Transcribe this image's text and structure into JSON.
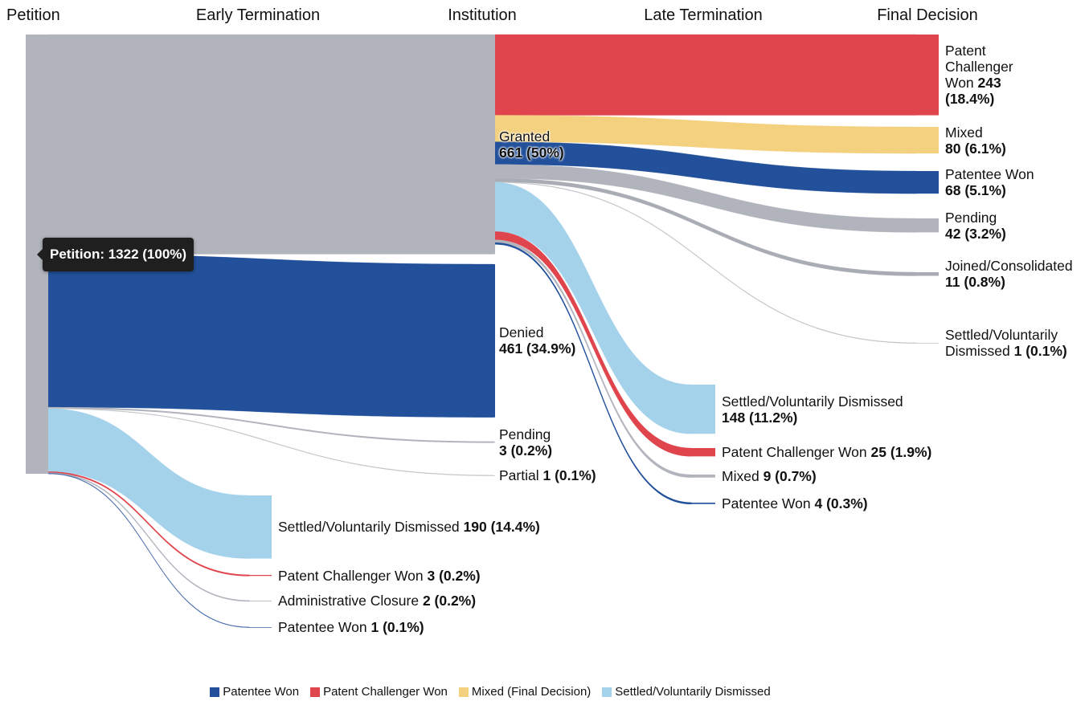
{
  "chart_data": {
    "type": "sankey",
    "columns": [
      "Petition",
      "Early Termination",
      "Institution",
      "Late Termination",
      "Final Decision"
    ],
    "tooltip": "Petition: 1322 (100%)",
    "nodes": [
      {
        "column": 0,
        "value": 1322,
        "color": "#b1b4bc"
      },
      {
        "name": "Granted",
        "column": 2,
        "value": 661,
        "value_label": "661 (50%)",
        "color": "#b1b4bc"
      },
      {
        "name": "Denied",
        "column": 2,
        "value": 461,
        "value_label": "461 (34.9%)",
        "color": "#22509b"
      },
      {
        "name": "Pending",
        "column": 2,
        "value": 3,
        "value_label": "3 (0.2%)",
        "color": "#b1b4bc"
      },
      {
        "name": "Partial",
        "column": 2,
        "value": 1,
        "value_label": "1 (0.1%)",
        "color": "#c4c6cc"
      },
      {
        "name": "Settled/Voluntarily Dismissed",
        "column": 1,
        "value": 190,
        "value_label": "190 (14.4%)",
        "color": "#a5d2eb"
      },
      {
        "name": "Patent Challenger Won",
        "column": 1,
        "value": 3,
        "value_label": "3 (0.2%)",
        "color": "#e0444c"
      },
      {
        "name": "Administrative Closure",
        "column": 1,
        "value": 2,
        "value_label": "2 (0.2%)",
        "color": "#b1b4bc"
      },
      {
        "name": "Patentee Won",
        "column": 1,
        "value": 1,
        "value_label": "1 (0.1%)",
        "color": "#4a6fae"
      },
      {
        "name": "Settled/Voluntarily Dismissed",
        "column": 3,
        "value": 148,
        "value_label": "148 (11.2%)",
        "color": "#a5d2eb"
      },
      {
        "name": "Patent Challenger Won",
        "column": 3,
        "value": 25,
        "value_label": "25 (1.9%)",
        "color": "#e0444c"
      },
      {
        "name": "Mixed",
        "column": 3,
        "value": 9,
        "value_label": "9 (0.7%)",
        "color": "#b1b4bc"
      },
      {
        "name": "Patentee Won",
        "column": 3,
        "value": 4,
        "value_label": "4 (0.3%)",
        "color": "#22509b"
      },
      {
        "name": "Patent Challenger Won",
        "column": 4,
        "value": 243,
        "value_label": "243 (18.4%)",
        "color": "#e0444c"
      },
      {
        "name": "Mixed",
        "column": 4,
        "value": 80,
        "value_label": "80 (6.1%)",
        "color": "#f4d17f"
      },
      {
        "name": "Patentee Won",
        "column": 4,
        "value": 68,
        "value_label": "68 (5.1%)",
        "color": "#22509b"
      },
      {
        "name": "Pending",
        "column": 4,
        "value": 42,
        "value_label": "42 (3.2%)",
        "color": "#b1b4bc"
      },
      {
        "name": "Joined/Consolidated",
        "column": 4,
        "value": 11,
        "value_label": "11 (0.8%)",
        "color": "#a9acb4"
      },
      {
        "name": "Settled/Voluntarily Dismissed",
        "column": 4,
        "value": 1,
        "value_label": "1 (0.1%)",
        "color": "#c4c6cc"
      }
    ],
    "links": [
      {
        "source": 0,
        "target": 1,
        "value": 661
      },
      {
        "source": 0,
        "target": 2,
        "value": 461
      },
      {
        "source": 0,
        "target": 3,
        "value": 3
      },
      {
        "source": 0,
        "target": 4,
        "value": 1
      },
      {
        "source": 0,
        "target": 5,
        "value": 190
      },
      {
        "source": 0,
        "target": 6,
        "value": 3
      },
      {
        "source": 0,
        "target": 7,
        "value": 2
      },
      {
        "source": 0,
        "target": 8,
        "value": 1
      },
      {
        "source": 1,
        "target": 13,
        "value": 243
      },
      {
        "source": 1,
        "target": 14,
        "value": 80
      },
      {
        "source": 1,
        "target": 15,
        "value": 68
      },
      {
        "source": 1,
        "target": 16,
        "value": 42
      },
      {
        "source": 1,
        "target": 17,
        "value": 11
      },
      {
        "source": 1,
        "target": 18,
        "value": 1
      },
      {
        "source": 1,
        "target": 9,
        "value": 148
      },
      {
        "source": 1,
        "target": 10,
        "value": 25
      },
      {
        "source": 1,
        "target": 11,
        "value": 9
      },
      {
        "source": 1,
        "target": 12,
        "value": 4
      }
    ],
    "legend": [
      {
        "name": "Patentee Won",
        "color": "#22509b"
      },
      {
        "name": "Patent Challenger Won",
        "color": "#e0444c"
      },
      {
        "name": "Mixed (Final Decision)",
        "color": "#f4d17f"
      },
      {
        "name": "Settled/Voluntarily Dismissed",
        "color": "#a5d2eb"
      }
    ]
  }
}
